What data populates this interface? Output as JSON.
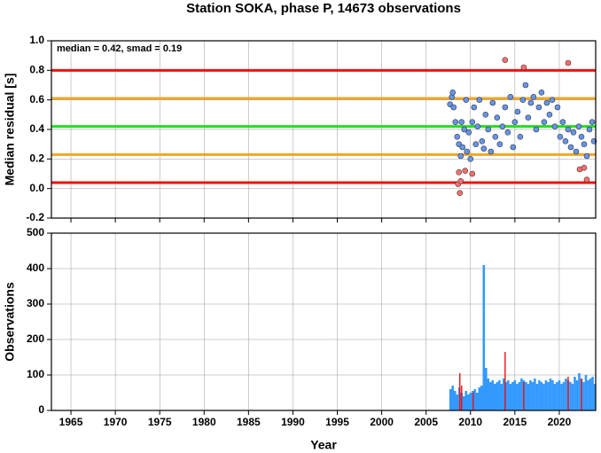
{
  "chart_data": [
    {
      "type": "scatter",
      "title": "Station SOKA, phase P, 14673 observations",
      "ylabel": "Median residual [s]",
      "annotation": "median = 0.42, smad = 0.19",
      "xlim": [
        1962.8,
        2024.1
      ],
      "xticks": [
        1965,
        1970,
        1975,
        1980,
        1985,
        1990,
        1995,
        2000,
        2005,
        2010,
        2015,
        2020
      ],
      "xtick_labels": false,
      "ylim": [
        -0.2,
        1.0
      ],
      "yticks": [
        {
          "value": -0.2,
          "label": "-0.2"
        },
        {
          "value": 0,
          "label": "0.0"
        },
        0.2,
        0.4,
        0.6,
        0.8,
        {
          "value": 1,
          "label": "1.0"
        }
      ],
      "grid": true,
      "reference_lines": [
        {
          "value": 0.8,
          "color": "#ee1111"
        },
        {
          "value": 0.61,
          "color": "#f5a623"
        },
        {
          "value": 0.42,
          "color": "#22dd22"
        },
        {
          "value": 0.23,
          "color": "#f5a623"
        },
        {
          "value": 0.04,
          "color": "#ee1111"
        }
      ],
      "series": [
        {
          "color": "#6495ed",
          "x": [
            2007.7,
            2007.9,
            2008.0,
            2008.1,
            2008.3,
            2008.5,
            2008.7,
            2008.9,
            2009.0,
            2009.1,
            2009.3,
            2009.5,
            2009.6,
            2009.8,
            2010.0,
            2010.2,
            2010.4,
            2010.6,
            2010.8,
            2011.0,
            2011.3,
            2011.5,
            2011.7,
            2012.0,
            2012.3,
            2012.5,
            2012.8,
            2013.0,
            2013.3,
            2013.6,
            2013.9,
            2014.2,
            2014.5,
            2014.8,
            2015.0,
            2015.3,
            2015.6,
            2015.9,
            2016.2,
            2016.5,
            2016.8,
            2017.1,
            2017.4,
            2017.7,
            2018.0,
            2018.3,
            2018.6,
            2018.9,
            2019.2,
            2019.5,
            2019.8,
            2020.1,
            2020.4,
            2020.7,
            2021.0,
            2021.3,
            2021.6,
            2021.9,
            2022.2,
            2022.5,
            2022.8,
            2023.1,
            2023.4,
            2023.7,
            2023.9
          ],
          "values": [
            0.57,
            0.62,
            0.65,
            0.55,
            0.45,
            0.35,
            0.3,
            0.22,
            0.45,
            0.28,
            0.4,
            0.6,
            0.25,
            0.38,
            0.2,
            0.45,
            0.55,
            0.3,
            0.42,
            0.6,
            0.32,
            0.27,
            0.5,
            0.4,
            0.25,
            0.58,
            0.35,
            0.48,
            0.3,
            0.42,
            0.55,
            0.38,
            0.62,
            0.28,
            0.45,
            0.52,
            0.35,
            0.6,
            0.7,
            0.48,
            0.58,
            0.62,
            0.4,
            0.55,
            0.65,
            0.45,
            0.58,
            0.5,
            0.6,
            0.42,
            0.55,
            0.35,
            0.45,
            0.32,
            0.4,
            0.28,
            0.38,
            0.25,
            0.42,
            0.35,
            0.3,
            0.22,
            0.4,
            0.45,
            0.32
          ]
        },
        {
          "color": "#ff7070",
          "x": [
            2008.6,
            2008.7,
            2008.8,
            2008.9,
            2009.4,
            2010.2,
            2013.9,
            2016.0,
            2021.0,
            2022.3,
            2022.8,
            2023.1
          ],
          "values": [
            0.03,
            0.11,
            -0.03,
            0.05,
            0.12,
            0.1,
            0.87,
            0.82,
            0.85,
            0.13,
            0.14,
            0.06
          ]
        }
      ]
    },
    {
      "type": "bar",
      "xlabel": "Year",
      "ylabel": "Observations",
      "xlim": [
        1962.8,
        2024.1
      ],
      "xticks": [
        1965,
        1970,
        1975,
        1980,
        1985,
        1990,
        1995,
        2000,
        2005,
        2010,
        2015,
        2020
      ],
      "xtick_labels": true,
      "ylim": [
        0,
        500
      ],
      "yticks": [
        0,
        100,
        200,
        300,
        400,
        500
      ],
      "grid": true,
      "series": [
        {
          "color": "#3399ff",
          "x": [
            2007.75,
            2008,
            2008.25,
            2008.5,
            2008.75,
            2009,
            2009.25,
            2009.5,
            2009.75,
            2010,
            2010.25,
            2010.5,
            2010.75,
            2011,
            2011.25,
            2011.5,
            2011.75,
            2012,
            2012.25,
            2012.5,
            2012.75,
            2013,
            2013.25,
            2013.5,
            2013.75,
            2014,
            2014.25,
            2014.5,
            2014.75,
            2015,
            2015.25,
            2015.5,
            2015.75,
            2016,
            2016.25,
            2016.5,
            2016.75,
            2017,
            2017.25,
            2017.5,
            2017.75,
            2018,
            2018.25,
            2018.5,
            2018.75,
            2019,
            2019.25,
            2019.5,
            2019.75,
            2020,
            2020.25,
            2020.5,
            2020.75,
            2021,
            2021.25,
            2021.5,
            2021.75,
            2022,
            2022.25,
            2022.5,
            2022.75,
            2023,
            2023.25,
            2023.5,
            2023.75,
            2024
          ],
          "values": [
            60,
            70,
            55,
            45,
            65,
            50,
            40,
            55,
            45,
            50,
            55,
            60,
            50,
            65,
            70,
            410,
            120,
            90,
            80,
            85,
            75,
            80,
            85,
            75,
            90,
            80,
            85,
            75,
            80,
            85,
            75,
            80,
            90,
            85,
            80,
            75,
            85,
            80,
            90,
            75,
            85,
            80,
            75,
            85,
            80,
            90,
            85,
            75,
            80,
            85,
            75,
            80,
            90,
            85,
            80,
            75,
            95,
            85,
            105,
            90,
            80,
            100,
            85,
            90,
            95,
            75
          ]
        },
        {
          "color": "#ee1111",
          "x": [
            2008.8,
            2009.0,
            2010.3,
            2013.9,
            2016.0,
            2021.0,
            2022.5
          ],
          "values": [
            105,
            70,
            50,
            165,
            80,
            95,
            90
          ]
        }
      ]
    }
  ]
}
